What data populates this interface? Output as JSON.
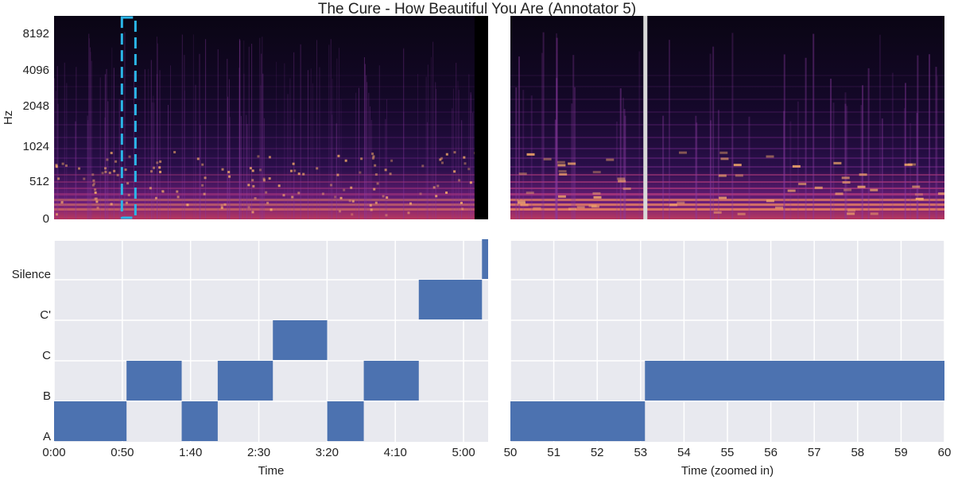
{
  "title": "The Cure - How Beautiful You Are (Annotator 5)",
  "colors": {
    "segment": "#4c72b0",
    "panel_bg": "#e8e9ef",
    "grid": "#ffffff",
    "highlight_box": "#2bb6e8",
    "playhead": "#d9d9d9"
  },
  "chart_data": [
    {
      "type": "heatmap",
      "panel": "spectrogram-full",
      "ylabel": "Hz",
      "y_scale": "log-like",
      "y_ticks": [
        "0",
        "512",
        "1024",
        "2048",
        "4096",
        "8192"
      ],
      "xlim": [
        0,
        320
      ],
      "highlight_window_seconds": [
        50,
        60
      ],
      "audio_end_seconds": 310
    },
    {
      "type": "heatmap",
      "panel": "spectrogram-zoom",
      "xlim": [
        50,
        60
      ],
      "playhead_seconds": 53.1
    },
    {
      "type": "bar",
      "panel": "segments-full",
      "xlabel": "Time",
      "x_ticks": [
        "0:00",
        "0:50",
        "1:40",
        "2:30",
        "3:20",
        "4:10",
        "5:00"
      ],
      "x_tick_values": [
        0,
        50,
        100,
        150,
        200,
        250,
        300
      ],
      "xlim": [
        0,
        318
      ],
      "categories": [
        "A",
        "B",
        "C",
        "C'",
        "Silence"
      ],
      "segments": [
        {
          "label": "A",
          "start": 0,
          "end": 53.1
        },
        {
          "label": "B",
          "start": 53.1,
          "end": 93.5
        },
        {
          "label": "A",
          "start": 93.5,
          "end": 119.9
        },
        {
          "label": "B",
          "start": 119.9,
          "end": 160.3
        },
        {
          "label": "C",
          "start": 160.3,
          "end": 200.1
        },
        {
          "label": "A",
          "start": 200.1,
          "end": 226.9
        },
        {
          "label": "B",
          "start": 226.9,
          "end": 267.2
        },
        {
          "label": "C'",
          "start": 267.2,
          "end": 313.5
        },
        {
          "label": "Silence",
          "start": 313.5,
          "end": 318
        }
      ]
    },
    {
      "type": "bar",
      "panel": "segments-zoom",
      "xlabel": "Time (zoomed in)",
      "x_ticks": [
        "50",
        "51",
        "52",
        "53",
        "54",
        "55",
        "56",
        "57",
        "58",
        "59",
        "60"
      ],
      "x_tick_values": [
        50,
        51,
        52,
        53,
        54,
        55,
        56,
        57,
        58,
        59,
        60
      ],
      "xlim": [
        50,
        60
      ],
      "categories": [
        "A",
        "B",
        "C",
        "C'",
        "Silence"
      ],
      "segments": [
        {
          "label": "A",
          "start": 50,
          "end": 53.1
        },
        {
          "label": "B",
          "start": 53.1,
          "end": 60
        }
      ]
    }
  ]
}
